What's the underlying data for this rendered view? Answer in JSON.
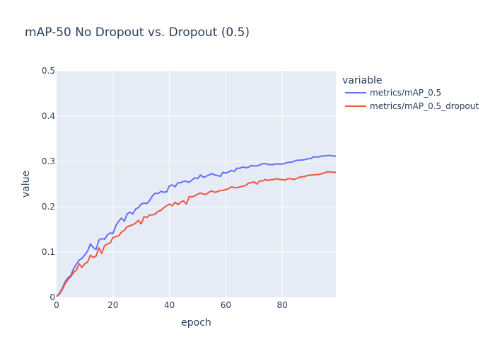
{
  "chart_data": {
    "type": "line",
    "title": "mAP-50 No Dropout vs. Dropout (0.5)",
    "xlabel": "epoch",
    "ylabel": "value",
    "xlim": [
      0,
      99
    ],
    "ylim": [
      0,
      0.5
    ],
    "xticks": [
      0,
      20,
      40,
      60,
      80
    ],
    "yticks": [
      0,
      0.1,
      0.2,
      0.3,
      0.4,
      0.5
    ],
    "ytick_labels": [
      "0",
      "0.1",
      "0.2",
      "0.3",
      "0.4",
      "0.5"
    ],
    "grid": true,
    "legend": {
      "title": "variable",
      "position": "right"
    },
    "plot_background": "#e5ecf6",
    "series": [
      {
        "name": "metrics/mAP_0.5",
        "color": "#636efa",
        "x": [
          0,
          1,
          2,
          3,
          4,
          5,
          6,
          7,
          8,
          9,
          10,
          11,
          12,
          13,
          14,
          15,
          16,
          17,
          18,
          19,
          20,
          21,
          22,
          23,
          24,
          25,
          26,
          27,
          28,
          29,
          30,
          31,
          32,
          33,
          34,
          35,
          36,
          37,
          38,
          39,
          40,
          41,
          42,
          43,
          44,
          45,
          46,
          47,
          48,
          49,
          50,
          51,
          52,
          53,
          54,
          55,
          56,
          57,
          58,
          59,
          60,
          61,
          62,
          63,
          64,
          65,
          66,
          67,
          68,
          69,
          70,
          71,
          72,
          73,
          74,
          75,
          76,
          77,
          78,
          79,
          80,
          81,
          82,
          83,
          84,
          85,
          86,
          87,
          88,
          89,
          90,
          91,
          92,
          93,
          94,
          95,
          96,
          97,
          98,
          99
        ],
        "y": [
          0.002,
          0.009,
          0.02,
          0.034,
          0.043,
          0.048,
          0.063,
          0.073,
          0.082,
          0.086,
          0.094,
          0.102,
          0.118,
          0.11,
          0.106,
          0.126,
          0.13,
          0.128,
          0.138,
          0.142,
          0.141,
          0.158,
          0.168,
          0.175,
          0.168,
          0.184,
          0.188,
          0.184,
          0.195,
          0.198,
          0.206,
          0.208,
          0.207,
          0.214,
          0.224,
          0.23,
          0.229,
          0.234,
          0.232,
          0.233,
          0.246,
          0.248,
          0.244,
          0.253,
          0.253,
          0.256,
          0.256,
          0.254,
          0.259,
          0.264,
          0.262,
          0.27,
          0.265,
          0.267,
          0.27,
          0.273,
          0.27,
          0.269,
          0.267,
          0.276,
          0.274,
          0.277,
          0.28,
          0.278,
          0.285,
          0.285,
          0.288,
          0.286,
          0.287,
          0.291,
          0.29,
          0.29,
          0.292,
          0.295,
          0.295,
          0.293,
          0.293,
          0.293,
          0.295,
          0.294,
          0.294,
          0.296,
          0.298,
          0.298,
          0.3,
          0.302,
          0.303,
          0.303,
          0.304,
          0.306,
          0.306,
          0.31,
          0.31,
          0.31,
          0.312,
          0.312,
          0.313,
          0.313,
          0.312,
          0.312
        ]
      },
      {
        "name": "metrics/mAP_0.5_dropout",
        "color": "#ef553b",
        "x": [
          0,
          1,
          2,
          3,
          4,
          5,
          6,
          7,
          8,
          9,
          10,
          11,
          12,
          13,
          14,
          15,
          16,
          17,
          18,
          19,
          20,
          21,
          22,
          23,
          24,
          25,
          26,
          27,
          28,
          29,
          30,
          31,
          32,
          33,
          34,
          35,
          36,
          37,
          38,
          39,
          40,
          41,
          42,
          43,
          44,
          45,
          46,
          47,
          48,
          49,
          50,
          51,
          52,
          53,
          54,
          55,
          56,
          57,
          58,
          59,
          60,
          61,
          62,
          63,
          64,
          65,
          66,
          67,
          68,
          69,
          70,
          71,
          72,
          73,
          74,
          75,
          76,
          77,
          78,
          79,
          80,
          81,
          82,
          83,
          84,
          85,
          86,
          87,
          88,
          89,
          90,
          91,
          92,
          93,
          94,
          95,
          96,
          97,
          98,
          99
        ],
        "y": [
          0.002,
          0.007,
          0.017,
          0.03,
          0.039,
          0.045,
          0.055,
          0.06,
          0.074,
          0.066,
          0.074,
          0.078,
          0.093,
          0.088,
          0.091,
          0.109,
          0.097,
          0.114,
          0.118,
          0.12,
          0.132,
          0.134,
          0.136,
          0.144,
          0.148,
          0.156,
          0.158,
          0.16,
          0.164,
          0.17,
          0.162,
          0.178,
          0.176,
          0.182,
          0.182,
          0.184,
          0.19,
          0.192,
          0.198,
          0.202,
          0.206,
          0.202,
          0.21,
          0.205,
          0.21,
          0.213,
          0.206,
          0.222,
          0.222,
          0.224,
          0.228,
          0.23,
          0.228,
          0.227,
          0.232,
          0.235,
          0.232,
          0.233,
          0.236,
          0.236,
          0.238,
          0.24,
          0.244,
          0.242,
          0.242,
          0.244,
          0.245,
          0.247,
          0.252,
          0.253,
          0.255,
          0.25,
          0.257,
          0.257,
          0.26,
          0.258,
          0.26,
          0.26,
          0.262,
          0.26,
          0.26,
          0.259,
          0.262,
          0.262,
          0.26,
          0.262,
          0.265,
          0.266,
          0.267,
          0.269,
          0.27,
          0.27,
          0.271,
          0.271,
          0.273,
          0.275,
          0.277,
          0.277,
          0.276,
          0.276
        ]
      }
    ]
  }
}
